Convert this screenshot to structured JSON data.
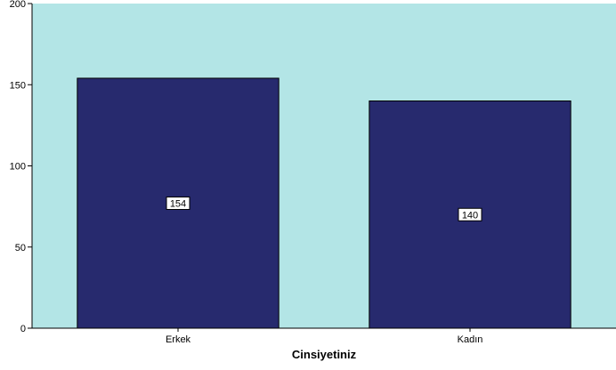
{
  "chart_data": {
    "type": "bar",
    "categories": [
      "Erkek",
      "Kadın"
    ],
    "values": [
      154,
      140
    ],
    "data_labels": [
      "154",
      "140"
    ],
    "xlabel": "Cinsiyetiniz",
    "ylabel": "",
    "ylim": [
      0,
      200
    ],
    "yticks": [
      0,
      50,
      100,
      150,
      200
    ],
    "ytick_labels": [
      "0",
      "50",
      "100",
      "150",
      "200"
    ],
    "grid": false,
    "colors": {
      "plot_background": "#b3e5e6",
      "bar_fill": "#272a6e",
      "bar_stroke": "#000000",
      "label_box_fill": "#ffffff"
    }
  }
}
